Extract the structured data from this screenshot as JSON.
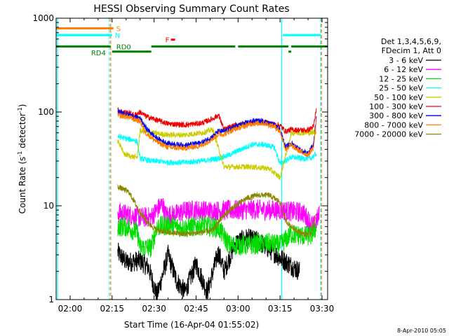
{
  "chart_data": {
    "type": "line",
    "title": "HESSI Observing Summary Count Rates",
    "xlabel": "Start Time (16-Apr-04 01:55:02)",
    "ylabel": "Count Rate (s⁻¹ detector⁻¹)",
    "ylabel_parts": [
      "Count Rate (s",
      "-1",
      " detector",
      "-1",
      ")"
    ],
    "y_scale": "log",
    "ylim": [
      1,
      1000
    ],
    "xlim_minutes": [
      0,
      37
    ],
    "x_ticks": [
      {
        "label": "02:00",
        "t": 5
      },
      {
        "label": "02:15",
        "t": 20
      },
      {
        "label": "02:30",
        "t": 35
      },
      {
        "label": "02:45",
        "t": 50
      },
      {
        "label": "03:00",
        "t": 65
      },
      {
        "label": "03:15",
        "t": 80
      },
      {
        "label": "03:30",
        "t": 95
      }
    ],
    "y_ticks": [
      {
        "label": "1",
        "v": 1
      },
      {
        "label": "10",
        "v": 10
      },
      {
        "label": "100",
        "v": 100
      },
      {
        "label": "1000",
        "v": 1000
      }
    ],
    "footer_date": "8-Apr-2010 05:05",
    "legend": {
      "header": [
        "Det 1,3,4,5,6,9,",
        "FDecim 1, Att 0"
      ],
      "placement": "right"
    },
    "series": [
      {
        "name": "3 - 6 keV",
        "color": "#000000",
        "points": [
          [
            22,
            3.2
          ],
          [
            25,
            2.5
          ],
          [
            30,
            2.6
          ],
          [
            33,
            2.2
          ],
          [
            36,
            1.1
          ],
          [
            40,
            3.0
          ],
          [
            43,
            1.6
          ],
          [
            46,
            1.2
          ],
          [
            50,
            2.4
          ],
          [
            54,
            1.2
          ],
          [
            58,
            3.2
          ],
          [
            60,
            2.0
          ],
          [
            64,
            4.0
          ],
          [
            68,
            4.5
          ],
          [
            72,
            4.2
          ],
          [
            76,
            3.5
          ],
          [
            80,
            2.8
          ],
          [
            84,
            2.3
          ],
          [
            87,
            2.0
          ]
        ]
      },
      {
        "name": "6 - 12 keV",
        "color": "#ff00ff",
        "points": [
          [
            22,
            8.5
          ],
          [
            26,
            8.0
          ],
          [
            30,
            7.5
          ],
          [
            34,
            7.6
          ],
          [
            36,
            9.0
          ],
          [
            38,
            10.5
          ],
          [
            39,
            8.0
          ],
          [
            42,
            8.0
          ],
          [
            46,
            8.8
          ],
          [
            50,
            9.0
          ],
          [
            56,
            8.8
          ],
          [
            62,
            9.0
          ],
          [
            66,
            9.0
          ],
          [
            70,
            9.2
          ],
          [
            74,
            9.0
          ],
          [
            80,
            9.0
          ],
          [
            84,
            8.7
          ],
          [
            88,
            8.5
          ],
          [
            92,
            6.0
          ],
          [
            94,
            8.0
          ]
        ]
      },
      {
        "name": "12 - 25 keV",
        "color": "#00dd00",
        "points": [
          [
            22,
            6.0
          ],
          [
            25,
            6.0
          ],
          [
            26,
            5.8
          ],
          [
            29,
            5.2
          ],
          [
            30,
            3.6
          ],
          [
            34,
            3.6
          ],
          [
            36,
            6.0
          ],
          [
            40,
            6.2
          ],
          [
            46,
            5.8
          ],
          [
            52,
            6.2
          ],
          [
            58,
            5.8
          ],
          [
            62,
            3.8
          ],
          [
            68,
            3.8
          ],
          [
            72,
            3.9
          ],
          [
            76,
            4.0
          ],
          [
            80,
            3.8
          ],
          [
            84,
            5.0
          ],
          [
            88,
            4.8
          ],
          [
            91,
            4.8
          ],
          [
            93,
            6.0
          ]
        ]
      },
      {
        "name": "25 - 50 keV",
        "color": "#00ffff",
        "points": [
          [
            22,
            55
          ],
          [
            25,
            52
          ],
          [
            28,
            50
          ],
          [
            29,
            48
          ],
          [
            30,
            32
          ],
          [
            34,
            30
          ],
          [
            36,
            30
          ],
          [
            40,
            29
          ],
          [
            46,
            29
          ],
          [
            52,
            30
          ],
          [
            58,
            32
          ],
          [
            62,
            35
          ],
          [
            66,
            40
          ],
          [
            70,
            45
          ],
          [
            74,
            45
          ],
          [
            78,
            42
          ],
          [
            80,
            28
          ],
          [
            84,
            33
          ],
          [
            88,
            32
          ],
          [
            91,
            32
          ],
          [
            93,
            36
          ]
        ]
      },
      {
        "name": "50 - 100 keV",
        "color": "#cccc00",
        "points": [
          [
            22,
            48
          ],
          [
            23,
            45
          ],
          [
            24,
            36
          ],
          [
            25,
            35
          ],
          [
            28,
            33
          ],
          [
            29,
            33
          ],
          [
            30,
            63
          ],
          [
            34,
            60
          ],
          [
            40,
            57
          ],
          [
            46,
            57
          ],
          [
            52,
            60
          ],
          [
            56,
            65
          ],
          [
            60,
            26
          ],
          [
            64,
            26
          ],
          [
            70,
            26
          ],
          [
            76,
            25
          ],
          [
            80,
            20
          ],
          [
            84,
            60
          ],
          [
            88,
            60
          ],
          [
            91,
            60
          ],
          [
            93,
            62
          ]
        ]
      },
      {
        "name": "100 - 300 keV",
        "color": "#ee0000",
        "points": [
          [
            22,
            105
          ],
          [
            24,
            100
          ],
          [
            26,
            98
          ],
          [
            28,
            92
          ],
          [
            30,
            100
          ],
          [
            32,
            90
          ],
          [
            36,
            82
          ],
          [
            40,
            75
          ],
          [
            46,
            73
          ],
          [
            52,
            76
          ],
          [
            56,
            85
          ],
          [
            58,
            93
          ],
          [
            60,
            65
          ],
          [
            64,
            72
          ],
          [
            70,
            78
          ],
          [
            74,
            78
          ],
          [
            78,
            74
          ],
          [
            80,
            72
          ],
          [
            82,
            62
          ],
          [
            84,
            65
          ],
          [
            88,
            64
          ],
          [
            90,
            64
          ],
          [
            92,
            70
          ],
          [
            93,
            110
          ]
        ]
      },
      {
        "name": "300 - 800 keV",
        "color": "#0000ee",
        "points": [
          [
            22,
            100
          ],
          [
            24,
            97
          ],
          [
            26,
            93
          ],
          [
            28,
            88
          ],
          [
            30,
            85
          ],
          [
            32,
            68
          ],
          [
            36,
            52
          ],
          [
            40,
            46
          ],
          [
            46,
            44
          ],
          [
            52,
            47
          ],
          [
            56,
            55
          ],
          [
            58,
            62
          ],
          [
            60,
            62
          ],
          [
            64,
            70
          ],
          [
            70,
            80
          ],
          [
            74,
            80
          ],
          [
            78,
            72
          ],
          [
            80,
            65
          ],
          [
            82,
            42
          ],
          [
            84,
            46
          ],
          [
            86,
            42
          ],
          [
            88,
            38
          ],
          [
            90,
            36
          ],
          [
            92,
            45
          ],
          [
            93,
            90
          ]
        ]
      },
      {
        "name": "800 - 7000 keV",
        "color": "#ff7f00",
        "points": [
          [
            22,
            92
          ],
          [
            24,
            90
          ],
          [
            26,
            88
          ],
          [
            28,
            83
          ],
          [
            30,
            80
          ],
          [
            32,
            60
          ],
          [
            36,
            48
          ],
          [
            40,
            42
          ],
          [
            46,
            41
          ],
          [
            52,
            44
          ],
          [
            56,
            52
          ],
          [
            58,
            58
          ],
          [
            60,
            58
          ],
          [
            64,
            66
          ],
          [
            70,
            75
          ],
          [
            74,
            76
          ],
          [
            78,
            70
          ],
          [
            80,
            62
          ],
          [
            82,
            40
          ],
          [
            84,
            44
          ],
          [
            86,
            40
          ],
          [
            88,
            37
          ],
          [
            90,
            35
          ],
          [
            92,
            42
          ],
          [
            93,
            85
          ]
        ]
      },
      {
        "name": "7000 - 20000 keV",
        "color": "#888800",
        "points": [
          [
            22,
            16
          ],
          [
            24,
            15
          ],
          [
            26,
            14
          ],
          [
            28,
            11
          ],
          [
            30,
            8.5
          ],
          [
            33,
            6.5
          ],
          [
            36,
            5.5
          ],
          [
            40,
            5.2
          ],
          [
            46,
            5.0
          ],
          [
            52,
            5.2
          ],
          [
            56,
            5.5
          ],
          [
            60,
            8.0
          ],
          [
            64,
            10
          ],
          [
            68,
            12
          ],
          [
            72,
            13
          ],
          [
            76,
            13
          ],
          [
            80,
            11
          ],
          [
            82,
            7
          ],
          [
            84,
            6
          ],
          [
            88,
            5
          ],
          [
            91,
            5
          ],
          [
            93,
            8
          ]
        ]
      }
    ],
    "annotations": {
      "labels": [
        {
          "text": "S",
          "color": "#ff8000"
        },
        {
          "text": "N",
          "color": "#00ffff"
        },
        {
          "text": "F",
          "color": "#ff0000"
        },
        {
          "text": "RD0",
          "color": "#008000"
        },
        {
          "text": "RD4",
          "color": "#008000"
        }
      ],
      "s_flag": {
        "color": "#ff8000",
        "value": 780,
        "segments": [
          [
            0,
            20.5
          ]
        ]
      },
      "n_flag": {
        "color": "#00ffff",
        "value": 660,
        "segments": [
          [
            0,
            20
          ],
          [
            81,
            94.5
          ]
        ]
      },
      "f_flag": {
        "color": "#ff0000",
        "value": 590,
        "segments": [
          [
            41,
            42.5
          ]
        ]
      },
      "rd_flag": {
        "color": "#008000",
        "value": 500,
        "segments": [
          [
            0,
            19.5
          ],
          [
            34,
            64
          ],
          [
            65,
            83
          ],
          [
            84,
            97
          ]
        ]
      },
      "rd4_flag": {
        "color": "#008000",
        "value": 440,
        "segments": [
          [
            20,
            34
          ],
          [
            83,
            84
          ]
        ]
      },
      "saa_lines": [
        {
          "t": 19.5,
          "color": "#ff8000",
          "dashed": true
        },
        {
          "t": 94.8,
          "color": "#ff8000",
          "dashed": true
        }
      ],
      "night_lines": [
        {
          "t": 19,
          "color": "#00ffff",
          "dashed": true
        },
        {
          "t": 94.5,
          "color": "#00ffff",
          "dashed": true
        },
        {
          "t": 80.6,
          "color": "#00ffff",
          "dashed": false
        },
        {
          "t": 0.5,
          "color": "#00ffff",
          "dashed": false
        }
      ]
    }
  }
}
